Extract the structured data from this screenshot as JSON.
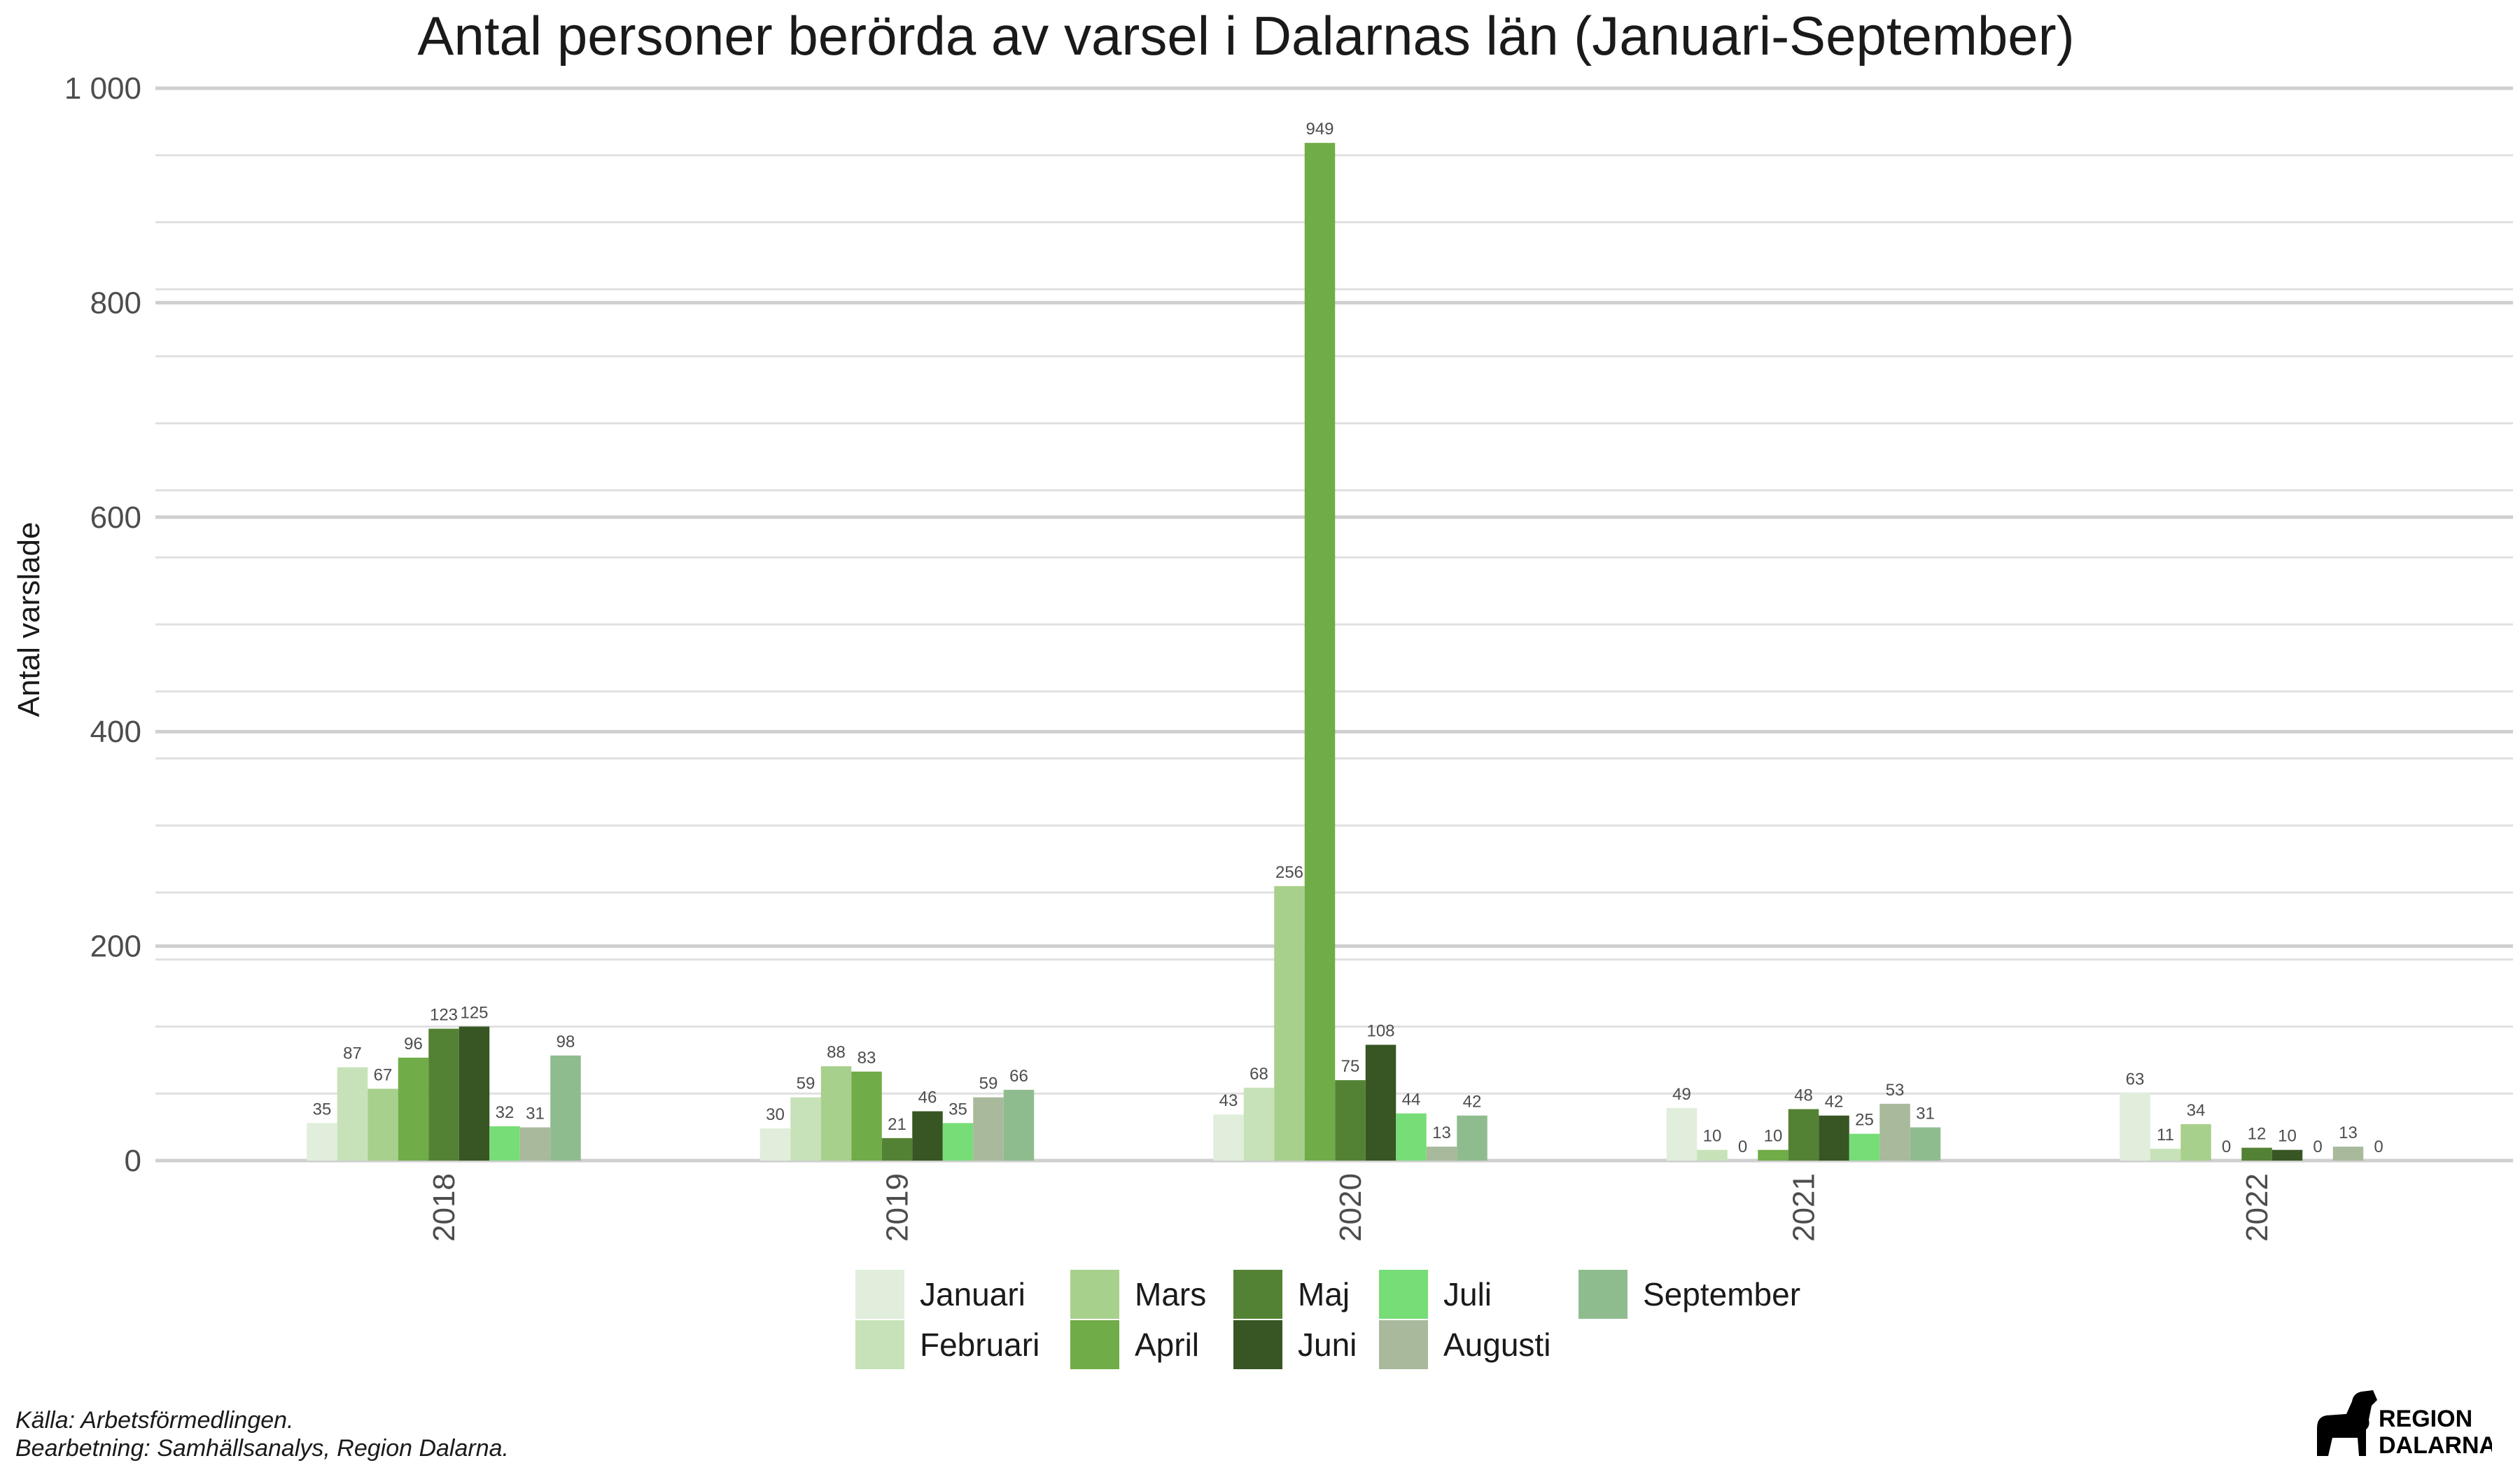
{
  "chart_data": {
    "type": "bar",
    "title": "Antal personer berörda av varsel i Dalarnas län (Januari-September)",
    "ylabel": "Antal varslade",
    "xlabel": "",
    "ylim": [
      0,
      1000
    ],
    "yticks": [
      0,
      200,
      400,
      600,
      800,
      1000
    ],
    "ytick_labels": [
      "0",
      "200",
      "400",
      "600",
      "800",
      "1 000"
    ],
    "categories": [
      "2018",
      "2019",
      "2020",
      "2021",
      "2022"
    ],
    "grid": true,
    "legend_position": "bottom",
    "series": [
      {
        "name": "Januari",
        "color": "#e0eedb",
        "values": [
          35,
          30,
          43,
          49,
          63
        ]
      },
      {
        "name": "Februari",
        "color": "#c7e2b8",
        "values": [
          87,
          59,
          68,
          10,
          11
        ]
      },
      {
        "name": "Mars",
        "color": "#a8d08d",
        "values": [
          67,
          88,
          256,
          0,
          34
        ]
      },
      {
        "name": "April",
        "color": "#70ac47",
        "values": [
          96,
          83,
          949,
          10,
          0
        ]
      },
      {
        "name": "Maj",
        "color": "#548235",
        "values": [
          123,
          21,
          75,
          48,
          12
        ]
      },
      {
        "name": "Juni",
        "color": "#375623",
        "values": [
          125,
          46,
          108,
          42,
          10
        ]
      },
      {
        "name": "Juli",
        "color": "#77dd77",
        "values": [
          32,
          35,
          44,
          25,
          0
        ]
      },
      {
        "name": "Augusti",
        "color": "#a9b99c",
        "values": [
          31,
          59,
          13,
          53,
          13
        ]
      },
      {
        "name": "September",
        "color": "#8fbc8f",
        "values": [
          98,
          66,
          42,
          31,
          0
        ]
      }
    ]
  },
  "caption": {
    "line1": "Källa: Arbetsförmedlingen.",
    "line2": "Bearbetning: Samhällsanalys, Region Dalarna."
  },
  "logo": {
    "line1": "REGION",
    "line2": "DALARNA",
    "icon": "dala-horse-icon"
  }
}
